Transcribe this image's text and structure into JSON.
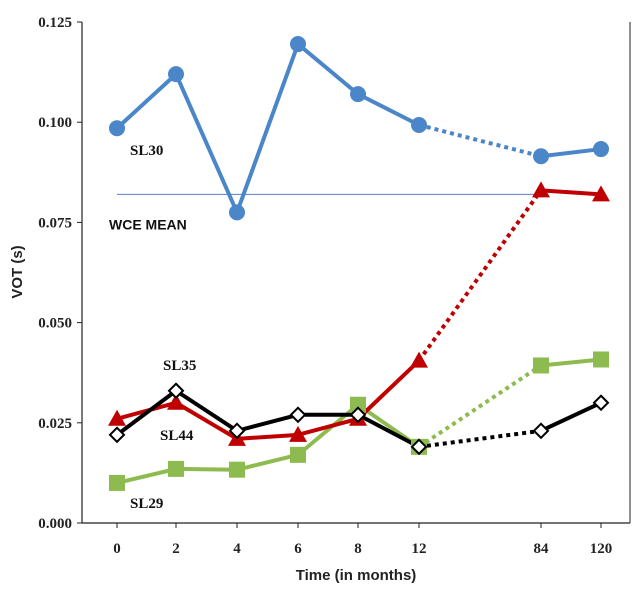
{
  "chart_data": {
    "type": "line",
    "title": "",
    "xlabel": "Time (in months)",
    "ylabel": "VOT (s)",
    "categories": [
      "0",
      "2",
      "4",
      "6",
      "8",
      "12",
      "84",
      "120"
    ],
    "ylim": [
      0,
      0.125
    ],
    "yticks": [
      "0.000",
      "0.025",
      "0.050",
      "0.075",
      "0.100",
      "0.125"
    ],
    "reference_line": {
      "label": "WCE MEAN",
      "value": 0.082,
      "color": "#5a7ec4"
    },
    "gap_after_index": 5,
    "series": [
      {
        "name": "SL30",
        "color": "#4a86c8",
        "marker": "circle",
        "values": [
          0.0985,
          0.112,
          0.0775,
          0.1195,
          0.107,
          0.0993,
          0.0915,
          0.0933
        ]
      },
      {
        "name": "SL35",
        "color": "#c00000",
        "marker": "triangle",
        "values": [
          0.026,
          0.03,
          0.021,
          0.022,
          0.026,
          0.0405,
          0.083,
          0.082
        ]
      },
      {
        "name": "SL44",
        "color": "#000000",
        "marker": "diamond",
        "values": [
          0.022,
          0.033,
          0.023,
          0.027,
          0.027,
          0.019,
          0.023,
          0.03
        ]
      },
      {
        "name": "SL29",
        "color": "#8dbb4f",
        "marker": "square",
        "values": [
          0.01,
          0.0135,
          0.0133,
          0.017,
          0.0295,
          0.019,
          0.0393,
          0.0408
        ]
      }
    ]
  }
}
